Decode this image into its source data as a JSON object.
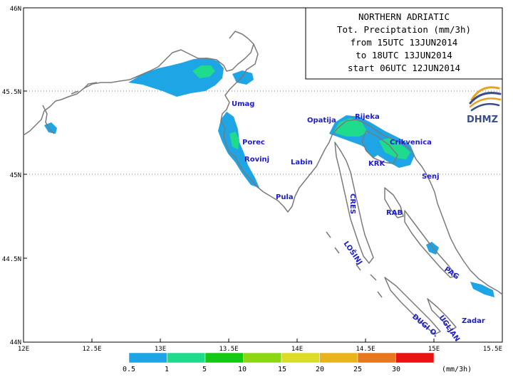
{
  "title_box": {
    "lines": [
      "NORTHERN ADRIATIC",
      "Tot. Preciptation (mm/3h)",
      "from 15UTC 13JUN2014",
      "to 18UTC 13JUN2014",
      "start 06UTC 12JUN2014"
    ]
  },
  "logo": {
    "text": "DHMZ",
    "icon": "dhmz-swirl-icon"
  },
  "axes": {
    "lon_ticks": [
      "12E",
      "12.5E",
      "13E",
      "13.5E",
      "14E",
      "14.5E",
      "15E",
      "15.5E"
    ],
    "lat_ticks": [
      "46N",
      "45.5N",
      "45N",
      "44.5N",
      "44N"
    ]
  },
  "places": [
    {
      "id": "umag",
      "name": "Umag"
    },
    {
      "id": "porec",
      "name": "Porec"
    },
    {
      "id": "rovinj",
      "name": "Rovinj"
    },
    {
      "id": "pula",
      "name": "Pula"
    },
    {
      "id": "labin",
      "name": "Labin"
    },
    {
      "id": "opatija",
      "name": "Opatija"
    },
    {
      "id": "rijeka",
      "name": "Rijeka"
    },
    {
      "id": "crikvenica",
      "name": "Crikvenica"
    },
    {
      "id": "krk",
      "name": "KRK"
    },
    {
      "id": "senj",
      "name": "Senj"
    },
    {
      "id": "cres",
      "name": "CRES"
    },
    {
      "id": "rab",
      "name": "RAB"
    },
    {
      "id": "losinj",
      "name": "LOŠINJ"
    },
    {
      "id": "pag",
      "name": "PAG"
    },
    {
      "id": "zadar",
      "name": "Zadar"
    },
    {
      "id": "ugljan",
      "name": "UGLJAN"
    },
    {
      "id": "dugi",
      "name": "DUGI O."
    }
  ],
  "legend": {
    "unit": "(mm/3h)",
    "labels": [
      "0.5",
      "1",
      "5",
      "10",
      "15",
      "20",
      "25",
      "30"
    ],
    "colors": [
      "#1ea5e6",
      "#1fdc8c",
      "#14c814",
      "#8cd614",
      "#dcdc28",
      "#e8b41e",
      "#e8781e",
      "#e81414"
    ]
  }
}
